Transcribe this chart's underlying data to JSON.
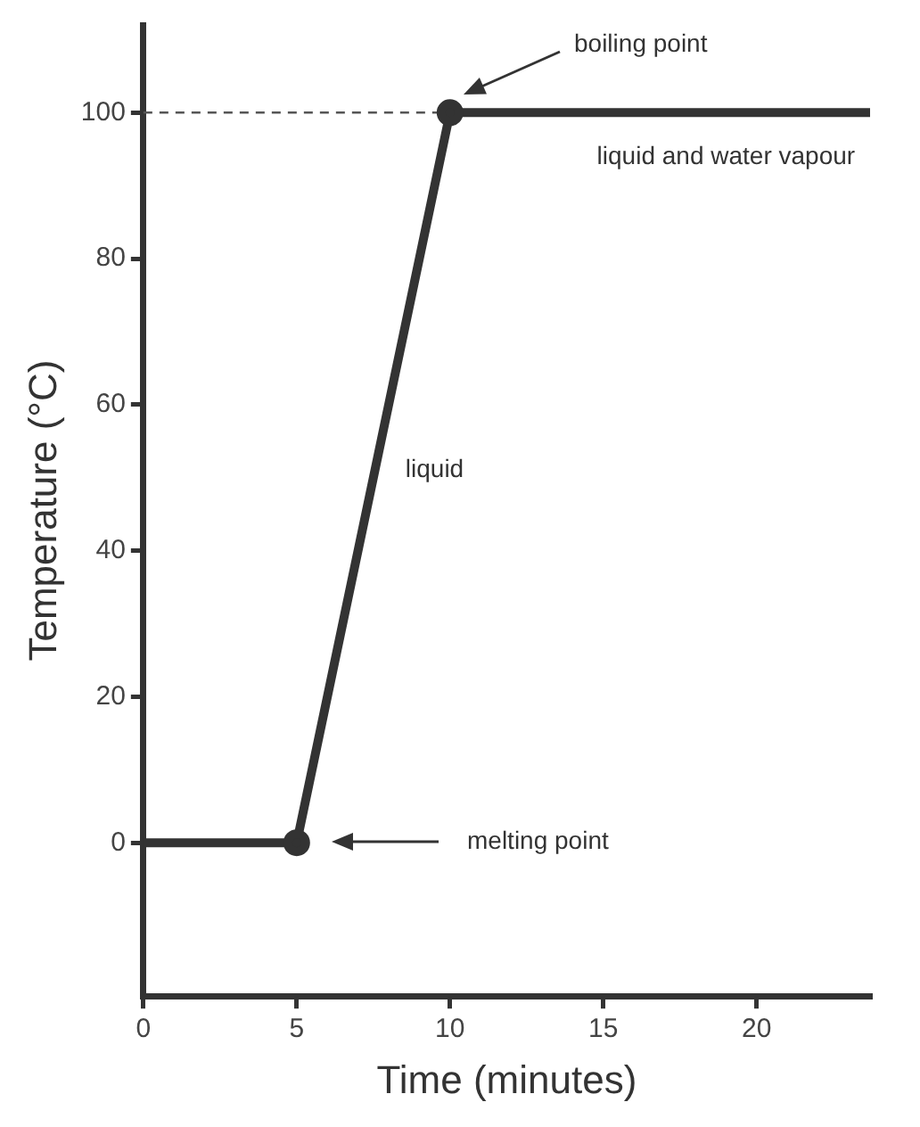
{
  "chart_data": {
    "type": "line",
    "xlabel": "Time (minutes)",
    "ylabel": "Temperature (°C)",
    "x": [
      0,
      5,
      10,
      23.7
    ],
    "series": [
      {
        "color": "#333333",
        "values": [
          0,
          0,
          100,
          100
        ]
      }
    ],
    "xlim": [
      0,
      23.7
    ],
    "xticks": [
      0,
      5,
      10,
      15,
      20
    ],
    "ylim": [
      -21,
      112
    ],
    "yticks": [
      0,
      20,
      40,
      60,
      80,
      100
    ],
    "grid": false,
    "legend": false,
    "marker": "circle",
    "line_style": "solid",
    "ref_lines": [
      {
        "axis": "y",
        "value": 100,
        "label": null,
        "color": "#555555",
        "line_style": "dashed"
      }
    ],
    "annotations": [
      "boiling point",
      {
        "text": "liquid and water vapour",
        "x": 19,
        "y": 100
      },
      {
        "text": "liquid",
        "x": 7.5,
        "y": 50
      },
      "melting point"
    ]
  }
}
